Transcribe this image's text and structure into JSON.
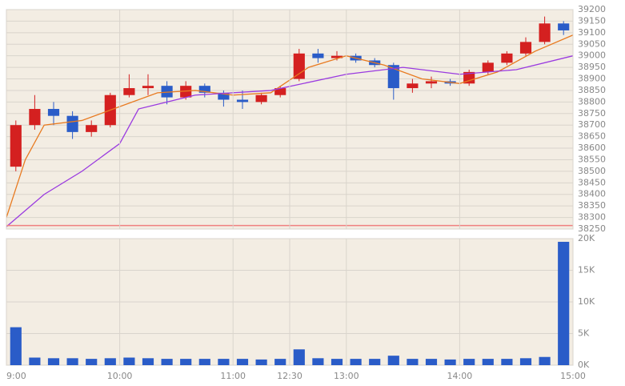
{
  "chart_data": [
    {
      "type": "candlestick",
      "x": [
        0,
        10,
        20,
        30,
        40,
        50,
        60,
        70,
        80,
        90,
        100,
        110,
        120,
        130,
        140,
        150,
        160,
        170,
        180,
        190,
        200,
        210,
        220,
        230,
        240,
        250,
        260,
        270,
        280,
        290
      ],
      "open": [
        38520,
        38700,
        38770,
        38740,
        38670,
        38700,
        38830,
        38860,
        38870,
        38820,
        38870,
        38840,
        38810,
        38800,
        38830,
        38900,
        39010,
        38990,
        39000,
        38980,
        38960,
        38860,
        38880,
        38890,
        38880,
        38930,
        38970,
        39010,
        39060,
        39140
      ],
      "high": [
        38720,
        38830,
        38800,
        38760,
        38720,
        38840,
        38920,
        38920,
        38890,
        38890,
        38880,
        38850,
        38850,
        38840,
        38870,
        39030,
        39030,
        39020,
        39010,
        38990,
        38970,
        38900,
        38910,
        38900,
        38940,
        38980,
        39020,
        39080,
        39170,
        39150
      ],
      "low": [
        38500,
        38680,
        38700,
        38640,
        38650,
        38690,
        38820,
        38830,
        38790,
        38810,
        38820,
        38780,
        38770,
        38790,
        38820,
        38890,
        38970,
        38980,
        38970,
        38950,
        38810,
        38840,
        38860,
        38870,
        38870,
        38920,
        38960,
        39000,
        39050,
        39090
      ],
      "close": [
        38700,
        38770,
        38740,
        38670,
        38700,
        38830,
        38860,
        38870,
        38820,
        38870,
        38840,
        38810,
        38800,
        38830,
        38860,
        39010,
        38990,
        39000,
        38980,
        38960,
        38860,
        38880,
        38890,
        38880,
        38930,
        38970,
        39010,
        39060,
        39140,
        39110
      ],
      "up_color": "#d42020",
      "down_color": "#2a5cc8",
      "lines": [
        {
          "color": "#e87a20",
          "x": [
            0,
            10,
            20,
            40,
            60,
            80,
            100,
            120,
            140,
            160,
            180,
            200,
            220,
            240,
            260,
            280,
            300
          ],
          "values": [
            38300,
            38550,
            38700,
            38720,
            38780,
            38840,
            38850,
            38830,
            38840,
            38950,
            39000,
            38960,
            38900,
            38880,
            38930,
            39020,
            39090
          ]
        },
        {
          "color": "#9a3ae0",
          "x": [
            0,
            20,
            40,
            60,
            70,
            100,
            140,
            180,
            210,
            240,
            270,
            300
          ],
          "values": [
            38260,
            38400,
            38500,
            38620,
            38770,
            38830,
            38850,
            38920,
            38950,
            38920,
            38940,
            39000
          ]
        }
      ],
      "hline": 38265,
      "hline_color": "#f08080",
      "xlim": [
        0,
        300
      ],
      "ylim": [
        38250,
        39200
      ],
      "yticks": [
        38250,
        38300,
        38350,
        38400,
        38450,
        38500,
        38550,
        38600,
        38650,
        38700,
        38750,
        38800,
        38850,
        38900,
        38950,
        39000,
        39050,
        39100,
        39150,
        39200
      ],
      "grid": true
    },
    {
      "type": "bar",
      "x": [
        0,
        10,
        20,
        30,
        40,
        50,
        60,
        70,
        80,
        90,
        100,
        110,
        120,
        130,
        140,
        150,
        160,
        170,
        180,
        190,
        200,
        210,
        220,
        230,
        240,
        250,
        260,
        270,
        280,
        290
      ],
      "values": [
        6000,
        1200,
        1100,
        1100,
        1000,
        1100,
        1200,
        1100,
        1000,
        1000,
        1000,
        1000,
        1000,
        900,
        1000,
        2500,
        1100,
        1000,
        1000,
        1000,
        1500,
        1000,
        1000,
        900,
        1000,
        1000,
        1000,
        1100,
        1300,
        19500
      ],
      "color": "#2a5cc8",
      "xlim": [
        0,
        300
      ],
      "ylim": [
        0,
        20000
      ],
      "yticks": [
        {
          "value": 0,
          "label": "0K"
        },
        {
          "value": 5000,
          "label": "5K"
        },
        {
          "value": 10000,
          "label": "10K"
        },
        {
          "value": 15000,
          "label": "15K"
        },
        {
          "value": 20000,
          "label": "20K"
        }
      ],
      "xticks": [
        {
          "value": 0,
          "label": "9:00"
        },
        {
          "value": 60,
          "label": "10:00"
        },
        {
          "value": 120,
          "label": "11:00"
        },
        {
          "value": 150,
          "label": "12:30"
        },
        {
          "value": 180,
          "label": "13:00"
        },
        {
          "value": 240,
          "label": "14:00"
        },
        {
          "value": 300,
          "label": "15:00"
        }
      ],
      "grid": true
    }
  ]
}
